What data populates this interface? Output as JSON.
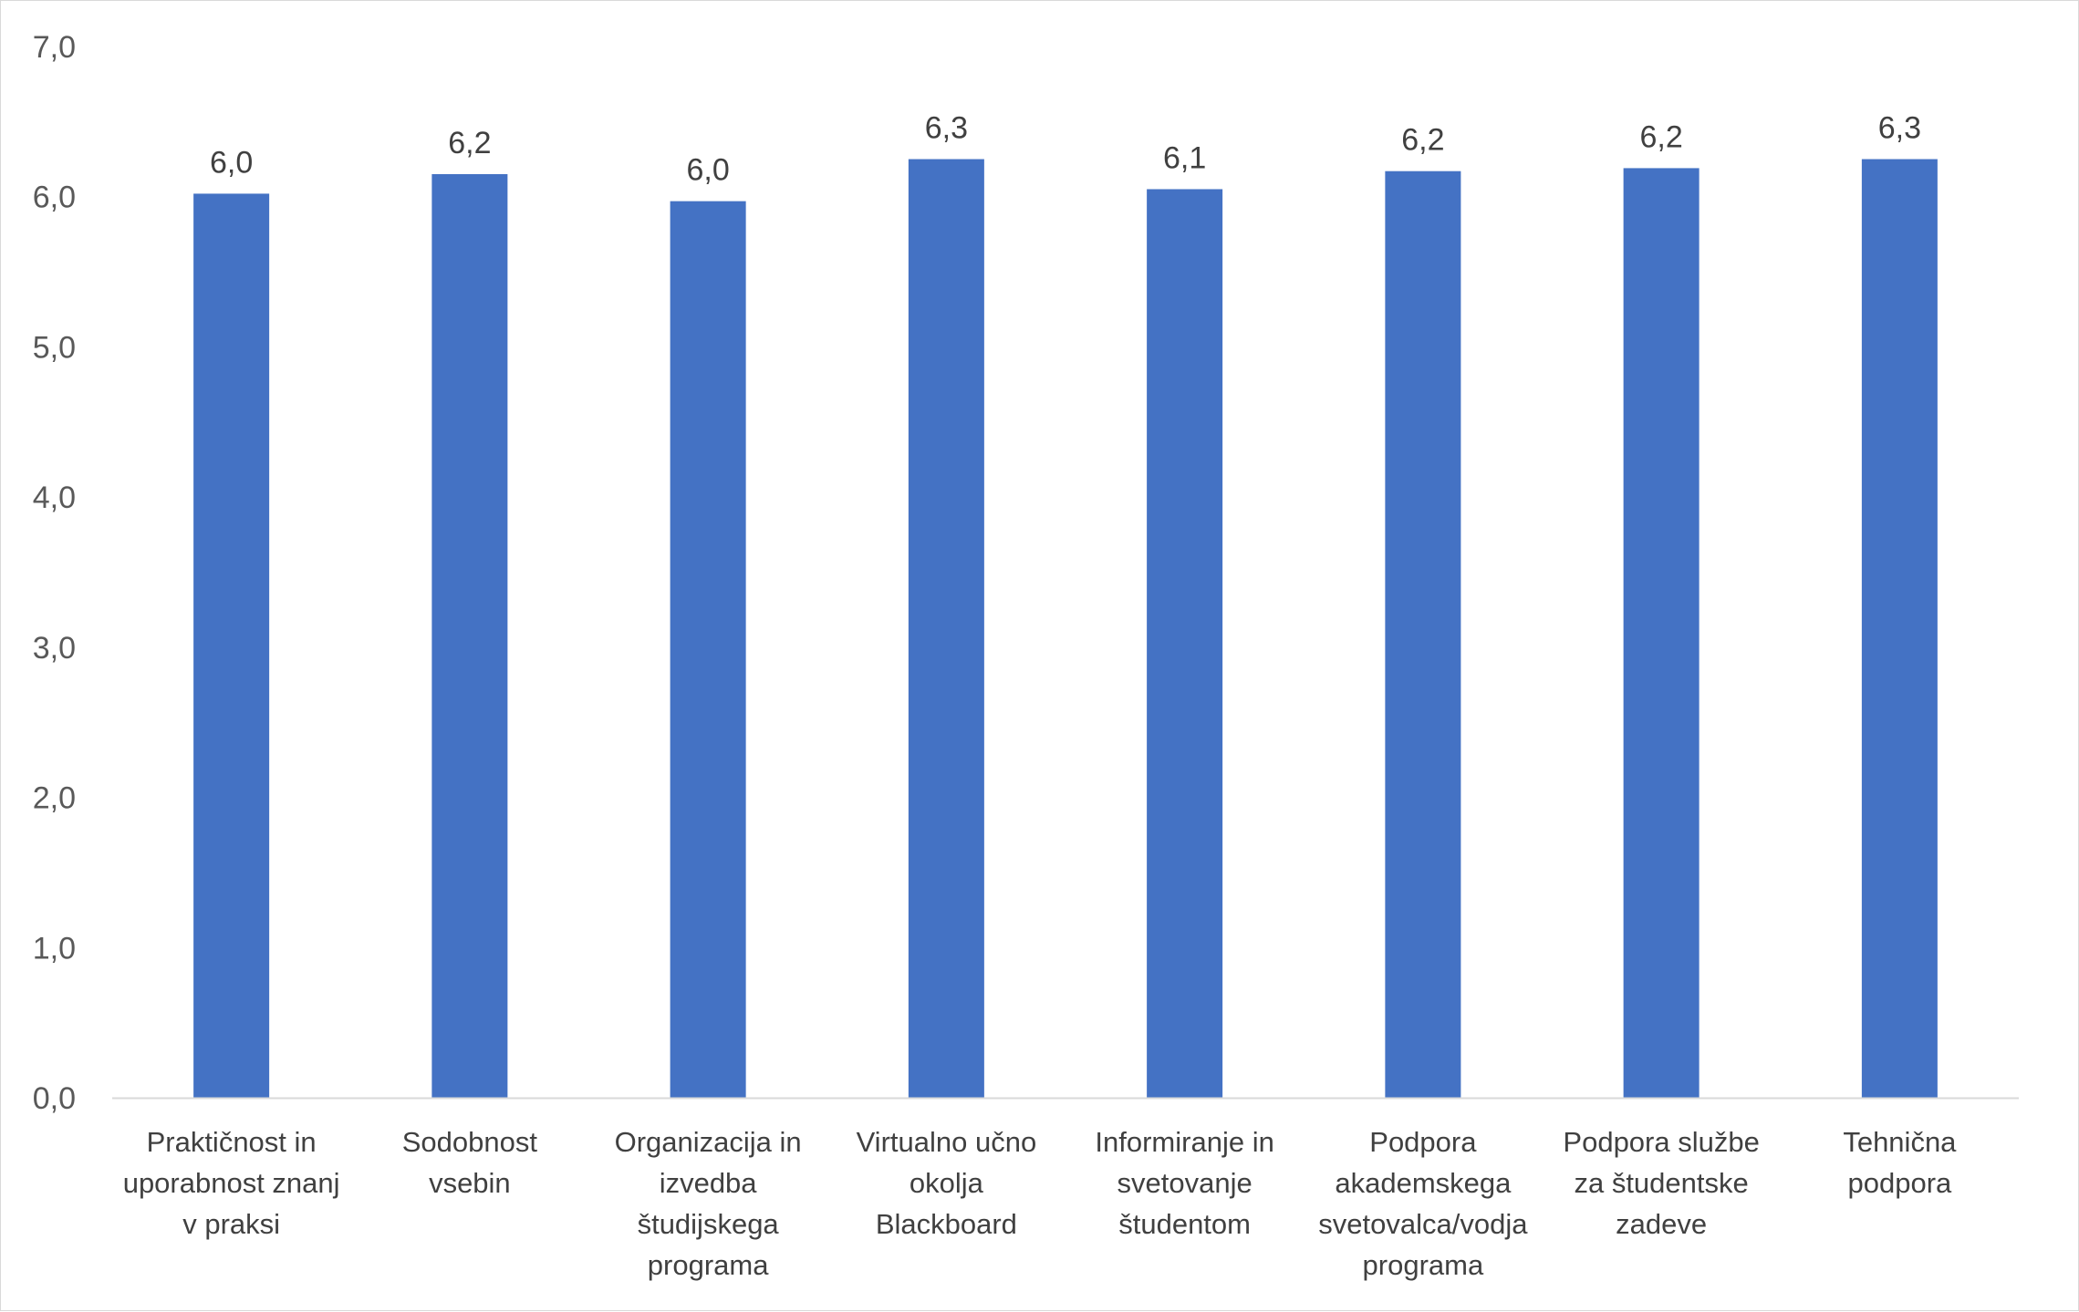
{
  "chart_data": {
    "type": "bar",
    "categories": [
      [
        "Praktičnost in",
        "uporabnost znanj",
        "v praksi"
      ],
      [
        "Sodobnost",
        "vsebin"
      ],
      [
        "Organizacija in",
        "izvedba",
        "študijskega",
        "programa"
      ],
      [
        "Virtualno učno",
        "okolja",
        "Blackboard"
      ],
      [
        "Informiranje in",
        "svetovanje",
        "študentom"
      ],
      [
        "Podpora",
        "akademskega",
        "svetovalca/vodja",
        "programa"
      ],
      [
        "Podpora službe",
        "za študentske",
        "zadeve"
      ],
      [
        "Tehnična",
        "podpora"
      ]
    ],
    "values": [
      6.02,
      6.15,
      5.97,
      6.25,
      6.05,
      6.17,
      6.19,
      6.25
    ],
    "data_labels": [
      "6,0",
      "6,2",
      "6,0",
      "6,3",
      "6,1",
      "6,2",
      "6,2",
      "6,3"
    ],
    "yticks": [
      0,
      1,
      2,
      3,
      4,
      5,
      6,
      7
    ],
    "ytick_labels": [
      "0,0",
      "1,0",
      "2,0",
      "3,0",
      "4,0",
      "5,0",
      "6,0",
      "7,0"
    ],
    "ylim": [
      0,
      7
    ],
    "title": "",
    "xlabel": "",
    "ylabel": "",
    "grid": false,
    "legend": "none",
    "bar_color": "#4472C4",
    "axis_color": "#D9D9D9"
  }
}
